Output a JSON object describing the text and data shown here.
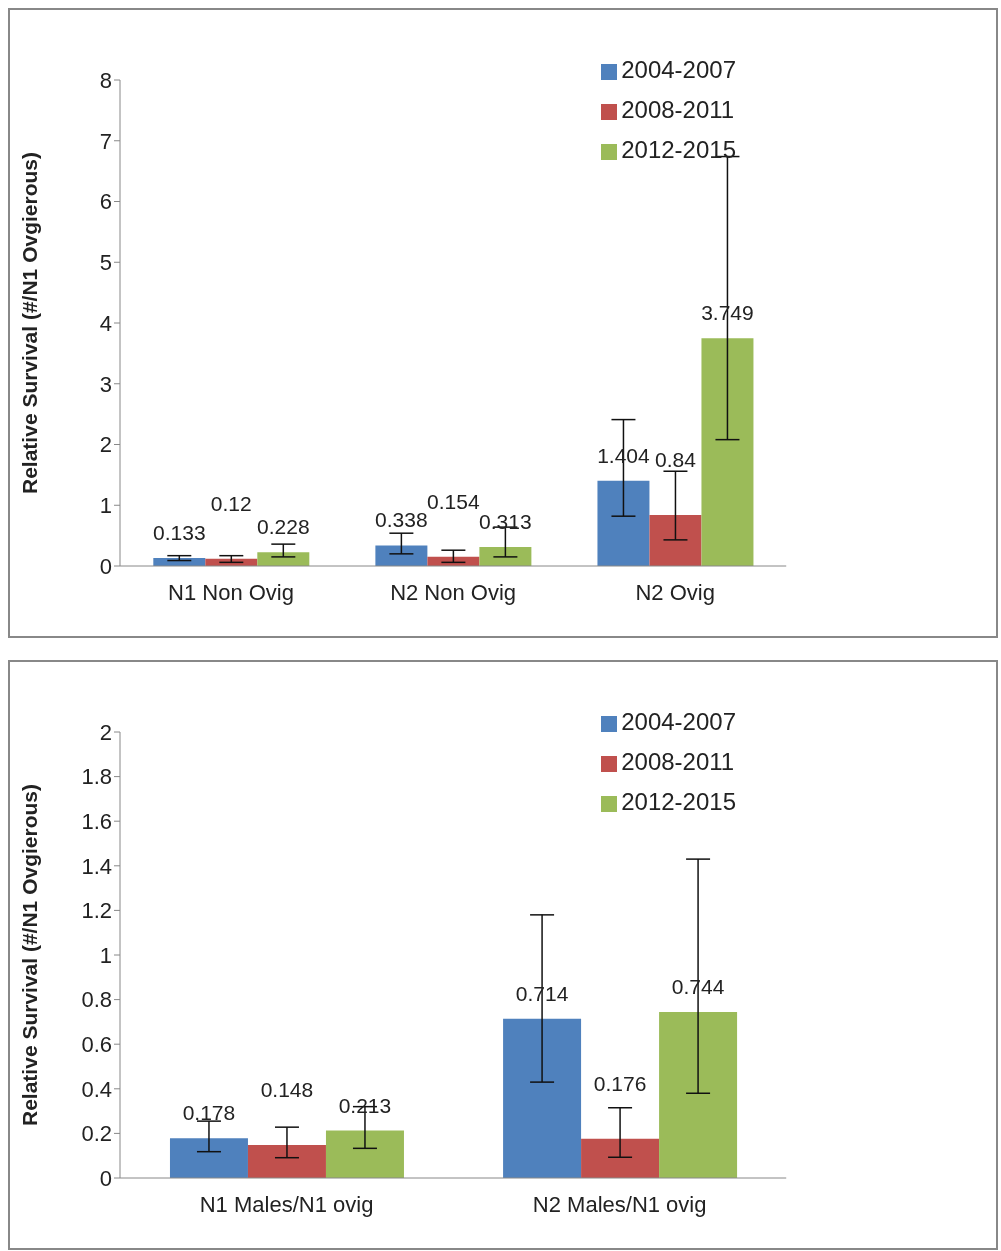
{
  "chart_data": [
    {
      "type": "bar",
      "ylabel": "Relative Survival (#/N1 Ovgierous)",
      "categories": [
        "N1 Non Ovig",
        "N2 Non Ovig",
        "N2 Ovig"
      ],
      "ylim": [
        0,
        8
      ],
      "yticks": [
        0,
        1,
        2,
        3,
        4,
        5,
        6,
        7,
        8
      ],
      "grid": false,
      "legend": "top right",
      "data_labels": true,
      "series": [
        {
          "name": "2004-2007",
          "color": "#4f81bd",
          "values": [
            0.133,
            0.338,
            1.404
          ],
          "errors": [
            [
              0.09,
              0.17
            ],
            [
              0.2,
              0.54
            ],
            [
              0.82,
              2.41
            ]
          ]
        },
        {
          "name": "2008-2011",
          "color": "#c0504d",
          "values": [
            0.12,
            0.154,
            0.84
          ],
          "errors": [
            [
              0.06,
              0.17
            ],
            [
              0.06,
              0.26
            ],
            [
              0.43,
              1.56
            ]
          ]
        },
        {
          "name": "2012-2015",
          "color": "#9bbb59",
          "values": [
            0.228,
            0.313,
            3.749
          ],
          "errors": [
            [
              0.15,
              0.36
            ],
            [
              0.15,
              0.64
            ],
            [
              2.08,
              6.74
            ]
          ]
        }
      ]
    },
    {
      "type": "bar",
      "ylabel": "Relative Survival (#/N1 Ovgierous)",
      "categories": [
        "N1 Males/N1 ovig",
        "N2  Males/N1 ovig"
      ],
      "ylim": [
        0,
        2
      ],
      "yticks": [
        0,
        {
          "value": 0.2,
          "label": "0.2"
        },
        {
          "value": 0.4,
          "label": "0.4"
        },
        {
          "value": 0.6,
          "label": "0.6"
        },
        {
          "value": 0.8,
          "label": "0.8"
        },
        1,
        {
          "value": 1.2,
          "label": "1.2"
        },
        {
          "value": 1.4,
          "label": "1.4"
        },
        {
          "value": 1.6,
          "label": "1.6"
        },
        {
          "value": 1.8,
          "label": "1.8"
        },
        2
      ],
      "grid": false,
      "legend": "top right",
      "data_labels": true,
      "series": [
        {
          "name": "2004-2007",
          "color": "#4f81bd",
          "values": [
            0.178,
            0.714
          ],
          "errors": [
            [
              0.118,
              0.255
            ],
            [
              0.43,
              1.18
            ]
          ]
        },
        {
          "name": "2008-2011",
          "color": "#c0504d",
          "values": [
            0.148,
            0.176
          ],
          "errors": [
            [
              0.091,
              0.228
            ],
            [
              0.093,
              0.315
            ]
          ]
        },
        {
          "name": "2012-2015",
          "color": "#9bbb59",
          "values": [
            0.213,
            0.744
          ],
          "errors": [
            [
              0.133,
              0.32
            ],
            [
              0.38,
              1.43
            ]
          ]
        }
      ]
    }
  ]
}
